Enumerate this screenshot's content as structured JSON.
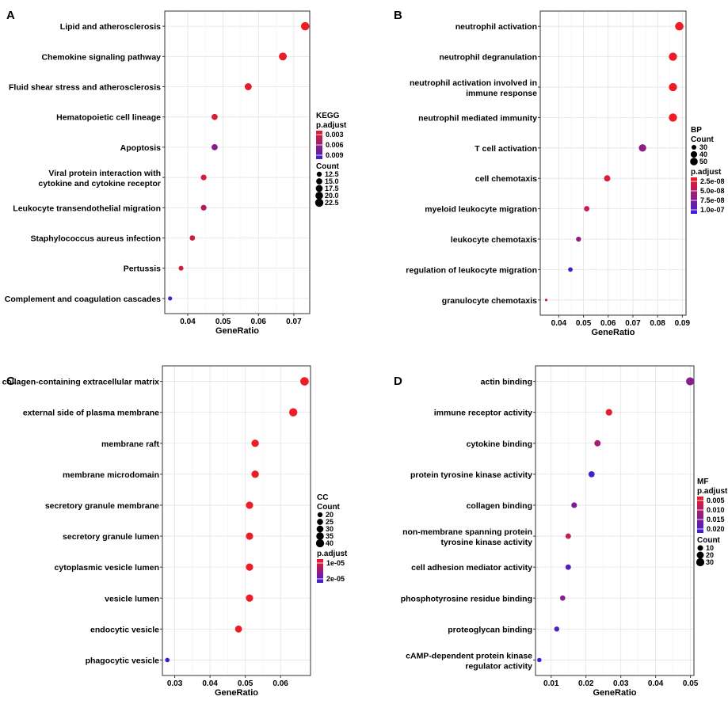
{
  "colors": {
    "low_padj": "#ee1c25",
    "high_padj": "#3b1fd6",
    "grid": "#e3e3e3",
    "border": "#333333"
  },
  "chart_data": [
    {
      "type": "scatter",
      "panel": "A",
      "xlabel": "GeneRatio",
      "xlim": [
        0.0335,
        0.0745
      ],
      "xticks": [
        0.04,
        0.05,
        0.06,
        0.07
      ],
      "xtick_labels": [
        "0.04",
        "0.05",
        "0.06",
        "0.07"
      ],
      "legend": {
        "title": "KEGG",
        "count_title": "Count",
        "count_values": [
          12.5,
          15.0,
          17.5,
          20.0,
          22.5
        ],
        "count_labels": [
          "12.5",
          "15.0",
          "17.5",
          "20.0",
          "22.5"
        ],
        "padj_title": "p.adjust",
        "padj_labels": [
          "0.003",
          "0.006",
          "0.009"
        ],
        "order": "padj-first"
      },
      "count_range": [
        10,
        24
      ],
      "padj_range": [
        0.0015,
        0.0105
      ],
      "points": [
        {
          "label": "Lipid and atherosclerosis",
          "x": 0.0732,
          "count": 23,
          "padj": 0.0015
        },
        {
          "label": "Chemokine signaling pathway",
          "x": 0.0669,
          "count": 21,
          "padj": 0.0018
        },
        {
          "label": "Fluid shear stress and atherosclerosis",
          "x": 0.0571,
          "count": 18,
          "padj": 0.002
        },
        {
          "label": "Hematopoietic cell lineage",
          "x": 0.0476,
          "count": 15,
          "padj": 0.0025
        },
        {
          "label": "Apoptosis",
          "x": 0.0476,
          "count": 15,
          "padj": 0.0068
        },
        {
          "label": "Viral protein interaction with\ncytokine and cytokine receptor",
          "x": 0.0445,
          "count": 14,
          "padj": 0.0028
        },
        {
          "label": "Leukocyte transendothelial migration",
          "x": 0.0445,
          "count": 14,
          "padj": 0.0045
        },
        {
          "label": "Staphylococcus aureus infection",
          "x": 0.0413,
          "count": 13,
          "padj": 0.003
        },
        {
          "label": "Pertussis",
          "x": 0.0381,
          "count": 12,
          "padj": 0.003
        },
        {
          "label": "Complement and coagulation cascades",
          "x": 0.035,
          "count": 11,
          "padj": 0.0098
        }
      ]
    },
    {
      "type": "scatter",
      "panel": "B",
      "xlabel": "GeneRatio",
      "xlim": [
        0.0325,
        0.0915
      ],
      "xticks": [
        0.04,
        0.05,
        0.06,
        0.07,
        0.08,
        0.09
      ],
      "xtick_labels": [
        "0.04",
        "0.05",
        "0.06",
        "0.07",
        "0.08",
        "0.09"
      ],
      "legend": {
        "title": "BP",
        "count_title": "Count",
        "count_values": [
          30,
          40,
          50
        ],
        "count_labels": [
          "30",
          "40",
          "50"
        ],
        "padj_title": "p.adjust",
        "padj_labels": [
          "2.5e-08",
          "5.0e-08",
          "7.5e-08",
          "1.0e-07"
        ],
        "order": "count-first"
      },
      "count_range": [
        25,
        60
      ],
      "padj_range": [
        1e-08,
        1.05e-07
      ],
      "points": [
        {
          "label": "neutrophil activation",
          "x": 0.0888,
          "count": 58,
          "padj": 1e-08
        },
        {
          "label": "neutrophil degranulation",
          "x": 0.0862,
          "count": 56,
          "padj": 1e-08
        },
        {
          "label": "neutrophil activation involved in\nimmune response",
          "x": 0.0862,
          "count": 56,
          "padj": 1e-08
        },
        {
          "label": "neutrophil mediated immunity",
          "x": 0.0862,
          "count": 56,
          "padj": 1e-08
        },
        {
          "label": "T cell activation",
          "x": 0.0739,
          "count": 48,
          "padj": 6e-08
        },
        {
          "label": "cell chemotaxis",
          "x": 0.0596,
          "count": 39,
          "padj": 2e-08
        },
        {
          "label": "myeloid leukocyte migration",
          "x": 0.0513,
          "count": 33,
          "padj": 3e-08
        },
        {
          "label": "leukocyte chemotaxis",
          "x": 0.048,
          "count": 31,
          "padj": 6e-08
        },
        {
          "label": "regulation of leukocyte migration",
          "x": 0.0447,
          "count": 29,
          "padj": 1.05e-07
        },
        {
          "label": "granulocyte chemotaxis",
          "x": 0.0349,
          "count": 23,
          "padj": 4.5e-08
        }
      ]
    },
    {
      "type": "scatter",
      "panel": "C",
      "xlabel": "GeneRatio",
      "xlim": [
        0.0265,
        0.0685
      ],
      "xticks": [
        0.03,
        0.04,
        0.05,
        0.06
      ],
      "xtick_labels": [
        "0.03",
        "0.04",
        "0.05",
        "0.06"
      ],
      "legend": {
        "title": "CC",
        "count_title": "Count",
        "count_values": [
          20,
          25,
          30,
          35,
          40
        ],
        "count_labels": [
          "20",
          "25",
          "30",
          "35",
          "40"
        ],
        "padj_title": "p.adjust",
        "padj_labels": [
          "1e-05",
          "2e-05"
        ],
        "order": "count-first"
      },
      "count_range": [
        15,
        44
      ],
      "padj_range": [
        3e-06,
        2.7e-05
      ],
      "points": [
        {
          "label": "collagen-containing extracellular matrix",
          "x": 0.0668,
          "count": 43,
          "padj": 3e-06
        },
        {
          "label": "external side of plasma membrane",
          "x": 0.0636,
          "count": 41,
          "padj": 3e-06
        },
        {
          "label": "membrane raft",
          "x": 0.0528,
          "count": 34,
          "padj": 3e-06
        },
        {
          "label": "membrane microdomain",
          "x": 0.0528,
          "count": 34,
          "padj": 3e-06
        },
        {
          "label": "secretory granule membrane",
          "x": 0.0512,
          "count": 33,
          "padj": 3e-06
        },
        {
          "label": "secretory granule lumen",
          "x": 0.0512,
          "count": 33,
          "padj": 3e-06
        },
        {
          "label": "cytoplasmic vesicle lumen",
          "x": 0.0512,
          "count": 33,
          "padj": 3e-06
        },
        {
          "label": "vesicle lumen",
          "x": 0.0512,
          "count": 33,
          "padj": 3e-06
        },
        {
          "label": "endocytic vesicle",
          "x": 0.0481,
          "count": 31,
          "padj": 3e-06
        },
        {
          "label": "phagocytic vesicle",
          "x": 0.0279,
          "count": 18,
          "padj": 2.7e-05
        }
      ]
    },
    {
      "type": "scatter",
      "panel": "D",
      "xlabel": "GeneRatio",
      "xlim": [
        0.0055,
        0.051
      ],
      "xticks": [
        0.01,
        0.02,
        0.03,
        0.04,
        0.05
      ],
      "xtick_labels": [
        "0.01",
        "0.02",
        "0.03",
        "0.04",
        "0.05"
      ],
      "legend": {
        "title": "MF",
        "count_title": "Count",
        "count_values": [
          10,
          20,
          30
        ],
        "count_labels": [
          "10",
          "20",
          "30"
        ],
        "padj_title": "p.adjust",
        "padj_labels": [
          "0.005",
          "0.010",
          "0.015",
          "0.020"
        ],
        "order": "padj-first"
      },
      "count_range": [
        1,
        35
      ],
      "padj_range": [
        0.002,
        0.021
      ],
      "points": [
        {
          "label": "actin binding",
          "x": 0.0499,
          "count": 30,
          "padj": 0.013
        },
        {
          "label": "immune receptor activity",
          "x": 0.0266,
          "count": 16,
          "padj": 0.003
        },
        {
          "label": "cytokine binding",
          "x": 0.0233,
          "count": 14,
          "padj": 0.01
        },
        {
          "label": "protein tyrosine kinase activity",
          "x": 0.0216,
          "count": 13,
          "padj": 0.02
        },
        {
          "label": "collagen binding",
          "x": 0.0166,
          "count": 10,
          "padj": 0.014
        },
        {
          "label": "non-membrane spanning protein\ntyrosine kinase activity",
          "x": 0.0149,
          "count": 9,
          "padj": 0.006
        },
        {
          "label": "cell adhesion mediator activity",
          "x": 0.0149,
          "count": 9,
          "padj": 0.019
        },
        {
          "label": "phosphotyrosine residue binding",
          "x": 0.0133,
          "count": 8,
          "padj": 0.013
        },
        {
          "label": "proteoglycan binding",
          "x": 0.0116,
          "count": 7,
          "padj": 0.019
        },
        {
          "label": "cAMP-dependent protein kinase\nregulator activity",
          "x": 0.0066,
          "count": 4,
          "padj": 0.021
        }
      ]
    }
  ]
}
